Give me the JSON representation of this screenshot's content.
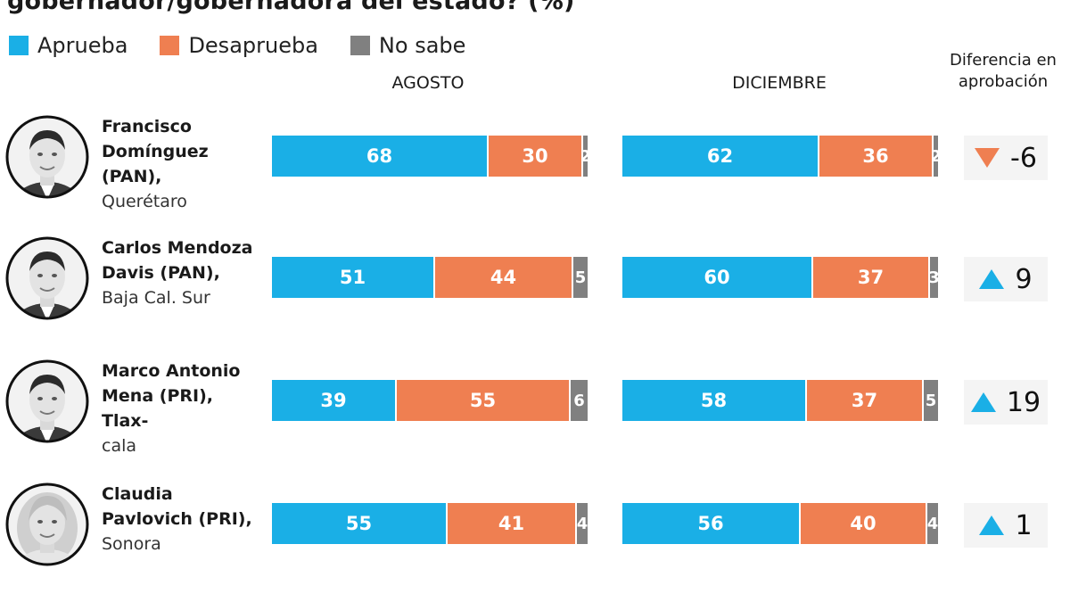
{
  "header": {
    "title": "gobernador/gobernadora del estado? (%)",
    "legend": [
      {
        "label": "Aprueba",
        "color": "#1aafe6"
      },
      {
        "label": "Desaprueba",
        "color": "#ef7f51"
      },
      {
        "label": "No sabe",
        "color": "#808080"
      }
    ],
    "months": [
      "AGOSTO",
      "DICIEMBRE"
    ],
    "diff_header_line1": "Diferencia en",
    "diff_header_line2": "aprobación"
  },
  "colors": {
    "aprueba": "#1aafe6",
    "desaprueba": "#ef7f51",
    "no_sabe": "#808080",
    "up": "#1aafe6",
    "down": "#ef7f51"
  },
  "chart_data": {
    "type": "bar",
    "stacked": true,
    "orientation": "horizontal",
    "title": "gobernador/gobernadora del estado? (%)",
    "series_names": [
      "Aprueba",
      "Desaprueba",
      "No sabe"
    ],
    "rows": [
      {
        "name_lines": [
          "Francisco",
          "Domínguez (PAN),"
        ],
        "location": "Querétaro",
        "avatar_icon": "man-portrait-icon",
        "agosto": [
          68,
          30,
          2
        ],
        "diciembre": [
          62,
          36,
          2
        ],
        "diff": "-6",
        "direction": "down"
      },
      {
        "name_lines": [
          "Carlos Mendoza",
          "Davis (PAN),"
        ],
        "location": "Baja Cal. Sur",
        "avatar_icon": "man-portrait-icon",
        "agosto": [
          51,
          44,
          5
        ],
        "diciembre": [
          60,
          37,
          3
        ],
        "diff": "9",
        "direction": "up"
      },
      {
        "name_lines": [
          "Marco Antonio",
          "Mena (PRI), Tlax-"
        ],
        "location": "cala",
        "avatar_icon": "man-portrait-icon",
        "agosto": [
          39,
          55,
          6
        ],
        "diciembre": [
          58,
          37,
          5
        ],
        "diff": "19",
        "direction": "up"
      },
      {
        "name_lines": [
          "Claudia",
          "Pavlovich (PRI),"
        ],
        "location": "Sonora",
        "avatar_icon": "woman-portrait-icon",
        "agosto": [
          55,
          41,
          4
        ],
        "diciembre": [
          56,
          40,
          4
        ],
        "diff": "1",
        "direction": "up"
      }
    ]
  }
}
